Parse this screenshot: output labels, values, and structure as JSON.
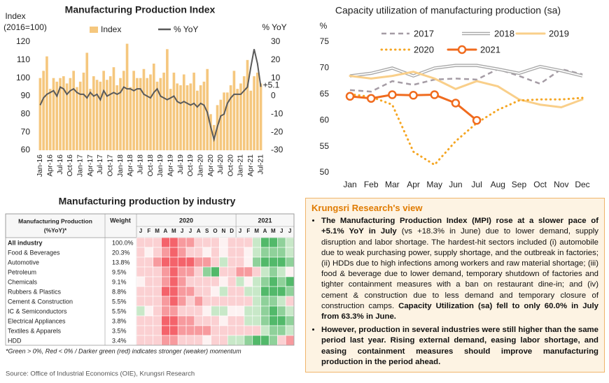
{
  "chart_data": [
    {
      "type": "bar",
      "title": "Manufacturing Production Index",
      "ylabel": [
        "Index",
        "(2016=100)"
      ],
      "y2label": "% YoY",
      "categories": [
        "Jan-16",
        null,
        null,
        "Apr-16",
        null,
        null,
        "Jul-16",
        null,
        null,
        "Oct-16",
        null,
        null,
        "Jan-17",
        null,
        null,
        "Apr-17",
        null,
        null,
        "Jul-17",
        null,
        null,
        "Oct-17",
        null,
        null,
        "Jan-18",
        null,
        null,
        "Apr-18",
        null,
        null,
        "Jul-18",
        null,
        null,
        "Oct-18",
        null,
        null,
        "Jan-19",
        null,
        null,
        "Apr-19",
        null,
        null,
        "Jul-19",
        null,
        null,
        "Oct-19",
        null,
        null,
        "Jan-20",
        null,
        null,
        "Apr-20",
        null,
        null,
        "Jul-20",
        null,
        null,
        "Oct-20",
        null,
        null,
        "Jan-21",
        null,
        null,
        "Apr-21",
        null,
        null,
        "Jul-21"
      ],
      "series": [
        {
          "name": "Index",
          "type": "bar",
          "color": "#f5c77e",
          "values": [
            100,
            104,
            112,
            94,
            100,
            98,
            100,
            101,
            97,
            100,
            104,
            95,
            98,
            103,
            114,
            94,
            101,
            99,
            98,
            104,
            99,
            101,
            106,
            96,
            100,
            104,
            119,
            95,
            104,
            100,
            100,
            105,
            100,
            102,
            108,
            98,
            100,
            103,
            116,
            94,
            103,
            97,
            96,
            102,
            96,
            97,
            103,
            93,
            96,
            98,
            105,
            80,
            74,
            85,
            88,
            92,
            92,
            96,
            104,
            94,
            97,
            101,
            110,
            93,
            101,
            103,
            97
          ]
        },
        {
          "name": "% YoY",
          "type": "line",
          "axis": "y2",
          "color": "#5a5a5a",
          "values": [
            -5,
            -1,
            1,
            2,
            3,
            0,
            5,
            4,
            1,
            3,
            4,
            2,
            1,
            1,
            -1,
            2,
            0,
            1,
            -2,
            3,
            0,
            1,
            2,
            1,
            2,
            5,
            4,
            4,
            3,
            4,
            4,
            1,
            0,
            -1,
            2,
            4,
            0,
            -1,
            -2,
            -1,
            0,
            -3,
            -4,
            -3,
            -4,
            -5,
            -4,
            -6,
            -4,
            -5,
            -9,
            -17,
            -24,
            -17,
            -11,
            -10,
            -4,
            -1,
            1,
            1,
            1,
            3,
            5,
            16,
            26,
            18,
            5.1
          ],
          "value_labels": [
            null,
            null,
            null,
            null,
            null,
            null,
            null,
            null,
            null,
            null,
            null,
            null,
            null,
            null,
            null,
            null,
            null,
            null,
            null,
            null,
            null,
            null,
            null,
            null,
            null,
            null,
            null,
            null,
            null,
            null,
            null,
            null,
            null,
            null,
            null,
            null,
            null,
            null,
            null,
            null,
            null,
            null,
            null,
            null,
            null,
            null,
            null,
            null,
            null,
            null,
            null,
            null,
            null,
            null,
            null,
            null,
            null,
            null,
            null,
            null,
            null,
            null,
            null,
            null,
            null,
            null,
            "+5.1"
          ]
        }
      ],
      "ylim": [
        60,
        120
      ],
      "yticks": [
        60,
        70,
        80,
        90,
        100,
        110,
        120
      ],
      "y2lim": [
        -30,
        30
      ],
      "y2ticks": [
        -30,
        -20,
        -10,
        0,
        10,
        20,
        30
      ]
    },
    {
      "type": "line",
      "title": "Capacity utilization of manufacturing production (sa)",
      "ylabel": "%",
      "categories": [
        "Jan",
        "Feb",
        "Mar",
        "Apr",
        "May",
        "Jun",
        "Jul",
        "Aug",
        "Sep",
        "Oct",
        "Nov",
        "Dec"
      ],
      "series": [
        {
          "name": "2017",
          "color": "#a59ca5",
          "style": "dashed",
          "values": [
            65.8,
            65.5,
            67.5,
            66.8,
            67.8,
            68,
            67.8,
            69.8,
            68.5,
            67,
            69.8,
            68.8
          ]
        },
        {
          "name": "2018",
          "color": "#a8a8a8",
          "style": "double",
          "values": [
            68.5,
            69,
            70,
            68.5,
            70,
            70.5,
            70.5,
            69.8,
            69,
            70.3,
            69.5,
            68.5
          ]
        },
        {
          "name": "2019",
          "color": "#f9cf8a",
          "style": "solid",
          "values": [
            68.5,
            68,
            68.5,
            69.3,
            68,
            66,
            67.5,
            66.5,
            64,
            63,
            62.5,
            64
          ]
        },
        {
          "name": "2020",
          "color": "#f5a623",
          "style": "dotted",
          "values": [
            65,
            64.5,
            63,
            54,
            51.5,
            56,
            59.5,
            62,
            63.8,
            64,
            64,
            64.3
          ]
        },
        {
          "name": "2021",
          "color": "#f06b1e",
          "style": "solid",
          "marker": "circle",
          "values": [
            64.6,
            64.2,
            64.9,
            64.8,
            64.9,
            63.3,
            60.0,
            null,
            null,
            null,
            null,
            null
          ]
        }
      ],
      "ylim": [
        50,
        75
      ],
      "yticks": [
        50,
        55,
        60,
        65,
        70,
        75
      ]
    }
  ],
  "table": {
    "title": "Manufacturing production by industry",
    "header": [
      "Manufacturing Production",
      "(%YoY)*"
    ],
    "weight_header": "Weight",
    "years": [
      "2020",
      "2021"
    ],
    "months": [
      "J",
      "F",
      "M",
      "A",
      "M",
      "J",
      "J",
      "A",
      "S",
      "O",
      "N",
      "D",
      "J",
      "F",
      "M",
      "A",
      "M",
      "J",
      "J"
    ],
    "rows": [
      {
        "name": "All industry",
        "weight": "100.0%",
        "colors": [
          "#fbd0d2",
          "#fbd0d2",
          "#fbd0d2",
          "#f4636b",
          "#f4636b",
          "#f79a9e",
          "#f79a9e",
          "#fbd0d2",
          "#fbd0d2",
          "#fbd0d2",
          "#fdf2f2",
          "#fbd0d2",
          "#fbd0d2",
          "#fbd0d2",
          "#c8e8c8",
          "#52b96a",
          "#52b96a",
          "#8fd19a",
          "#c8e8c8"
        ]
      },
      {
        "name": "Food & Beverages",
        "weight": "20.3%",
        "colors": [
          "#fbd0d2",
          "#fdf2f2",
          "#fbd0d2",
          "#f79a9e",
          "#f4636b",
          "#f79a9e",
          "#fbd0d2",
          "#fbd0d2",
          "#fdf2f2",
          "#fbd0d2",
          "#fdf2f2",
          "#fbd0d2",
          "#fbd0d2",
          "#fdf2f2",
          "#c8e8c8",
          "#8fd19a",
          "#8fd19a",
          "#8fd19a",
          "#c8e8c8"
        ]
      },
      {
        "name": "Automotive",
        "weight": "13.8%",
        "colors": [
          "#fbd0d2",
          "#fbd0d2",
          "#f79a9e",
          "#f4636b",
          "#f4636b",
          "#f4636b",
          "#f4636b",
          "#f79a9e",
          "#f79a9e",
          "#fbd0d2",
          "#c8e8c8",
          "#fbd0d2",
          "#fbd0d2",
          "#fdf2f2",
          "#8fd19a",
          "#52b96a",
          "#52b96a",
          "#52b96a",
          "#8fd19a"
        ]
      },
      {
        "name": "Petroleum",
        "weight": "9.5%",
        "colors": [
          "#fbd0d2",
          "#fbd0d2",
          "#fbd0d2",
          "#f79a9e",
          "#f4636b",
          "#f79a9e",
          "#f79a9e",
          "#fbd0d2",
          "#8fd19a",
          "#52b96a",
          "#fbd0d2",
          "#fbd0d2",
          "#f79a9e",
          "#f79a9e",
          "#fbd0d2",
          "#c8e8c8",
          "#8fd19a",
          "#c8e8c8",
          "#fdf2f2"
        ]
      },
      {
        "name": "Chemicals",
        "weight": "9.1%",
        "colors": [
          "#fdf2f2",
          "#fbd0d2",
          "#fbd0d2",
          "#f79a9e",
          "#f4636b",
          "#f79a9e",
          "#fbd0d2",
          "#fbd0d2",
          "#fbd0d2",
          "#fbd0d2",
          "#fdf2f2",
          "#fbd0d2",
          "#c8e8c8",
          "#fdf2f2",
          "#c8e8c8",
          "#8fd19a",
          "#52b96a",
          "#8fd19a",
          "#52b96a"
        ]
      },
      {
        "name": "Rubbers & Plastics",
        "weight": "8.8%",
        "colors": [
          "#fbd0d2",
          "#fbd0d2",
          "#fbd0d2",
          "#f4636b",
          "#f4636b",
          "#f79a9e",
          "#f79a9e",
          "#fbd0d2",
          "#fbd0d2",
          "#fdf2f2",
          "#c8e8c8",
          "#fbd0d2",
          "#fbd0d2",
          "#c8e8c8",
          "#c8e8c8",
          "#52b96a",
          "#52b96a",
          "#52b96a",
          "#8fd19a"
        ]
      },
      {
        "name": "Cement & Construction",
        "weight": "5.5%",
        "colors": [
          "#fbd0d2",
          "#fbd0d2",
          "#fbd0d2",
          "#f79a9e",
          "#f4636b",
          "#f79a9e",
          "#fbd0d2",
          "#f79a9e",
          "#fbd0d2",
          "#fbd0d2",
          "#fbd0d2",
          "#fbd0d2",
          "#fbd0d2",
          "#fbd0d2",
          "#c8e8c8",
          "#8fd19a",
          "#8fd19a",
          "#c8e8c8",
          "#fbd0d2"
        ]
      },
      {
        "name": "IC & Semiconductors",
        "weight": "5.5%",
        "colors": [
          "#c8e8c8",
          "#fdf2f2",
          "#fbd0d2",
          "#f79a9e",
          "#f79a9e",
          "#fbd0d2",
          "#fbd0d2",
          "#fbd0d2",
          "#fdf2f2",
          "#c8e8c8",
          "#c8e8c8",
          "#fdf2f2",
          "#fdf2f2",
          "#c8e8c8",
          "#c8e8c8",
          "#8fd19a",
          "#52b96a",
          "#8fd19a",
          "#c8e8c8"
        ]
      },
      {
        "name": "Electrical Appliances",
        "weight": "3.8%",
        "colors": [
          "#fbd0d2",
          "#fbd0d2",
          "#fbd0d2",
          "#f4636b",
          "#f4636b",
          "#f79a9e",
          "#f79a9e",
          "#fbd0d2",
          "#fbd0d2",
          "#fbd0d2",
          "#fdf2f2",
          "#fbd0d2",
          "#fbd0d2",
          "#c8e8c8",
          "#c8e8c8",
          "#8fd19a",
          "#52b96a",
          "#52b96a",
          "#8fd19a"
        ]
      },
      {
        "name": "Textiles & Apparels",
        "weight": "3.5%",
        "colors": [
          "#fbd0d2",
          "#fbd0d2",
          "#fbd0d2",
          "#f4636b",
          "#f4636b",
          "#f79a9e",
          "#f79a9e",
          "#f79a9e",
          "#f79a9e",
          "#fbd0d2",
          "#fbd0d2",
          "#fbd0d2",
          "#fbd0d2",
          "#fbd0d2",
          "#fbd0d2",
          "#c8e8c8",
          "#8fd19a",
          "#8fd19a",
          "#c8e8c8"
        ]
      },
      {
        "name": "HDD",
        "weight": "3.4%",
        "colors": [
          "#fbd0d2",
          "#fbd0d2",
          "#fbd0d2",
          "#f79a9e",
          "#f79a9e",
          "#fbd0d2",
          "#fbd0d2",
          "#fbd0d2",
          "#fdf2f2",
          "#fbd0d2",
          "#fbd0d2",
          "#c8e8c8",
          "#c8e8c8",
          "#8fd19a",
          "#52b96a",
          "#52b96a",
          "#8fd19a",
          "#fbd0d2",
          "#f79a9e"
        ]
      }
    ],
    "note": "*Green > 0%, Red < 0% / Darker green (red) indicates stronger (weaker) momentum"
  },
  "view": {
    "title": "Krungsri Research's view",
    "bullets": [
      [
        {
          "text": "The Manufacturing Production Index (MPI) rose at a slower pace of +5.1% YoY in July",
          "bold": true
        },
        {
          "text": " (vs +18.3% in June) due to lower demand, supply disruption and labor shortage. The hardest-hit sectors included (i) automobile due to weak purchasing power, supply shortage, and the outbreak in factories; (ii) HDDs due to high infections among workers and raw material shortage; (iii) food & beverage due to lower demand, temporary shutdown of factories and tighter containment measures with a ban on restaurant dine-in; and (iv) cement & construction due to less demand and temporary closure of construction camps. ",
          "bold": false
        },
        {
          "text": "Capacity Utilization (sa) fell to only 60.0% in July from 63.3% in June.",
          "bold": true
        }
      ],
      [
        {
          "text": "However, production in several industries were still higher than the same period last year. Rising external demand, easing labor shortage, and easing containment measures should improve manufacturing production in the period ahead.",
          "bold": true
        }
      ]
    ]
  },
  "source": "Source: Office of Industrial Economics (OIE), Krungsri Research"
}
